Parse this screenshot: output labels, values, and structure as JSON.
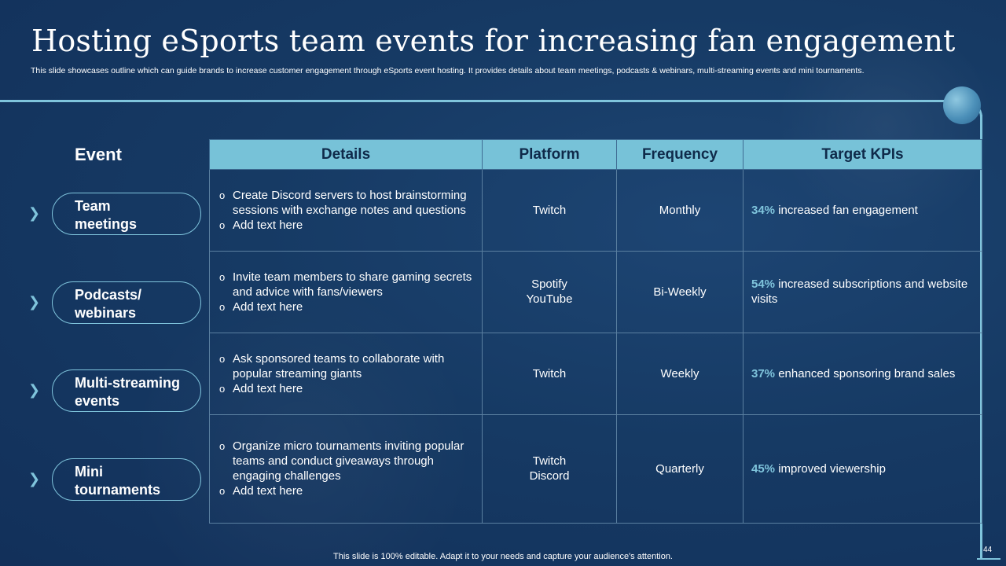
{
  "title": "Hosting eSports team events for increasing fan engagement",
  "subtitle": "This slide showcases outline which can guide brands to increase customer engagement through eSports event hosting. It provides details about team meetings, podcasts & webinars, multi-streaming events and mini tournaments.",
  "event_header": "Event",
  "events": [
    {
      "label": "Team\nmeetings"
    },
    {
      "label": "Podcasts/\nwebinars"
    },
    {
      "label": "Multi-streaming\nevents"
    },
    {
      "label": "Mini\ntournaments"
    }
  ],
  "table": {
    "headers": [
      "Details",
      "Platform",
      "Frequency",
      "Target KPIs"
    ],
    "rows": [
      {
        "details": [
          "Create Discord servers to host brainstorming sessions with exchange notes and questions",
          "Add text here"
        ],
        "platform": [
          "Twitch"
        ],
        "frequency": "Monthly",
        "kpi_pct": "34%",
        "kpi_text": " increased fan engagement"
      },
      {
        "details": [
          "Invite  team members to share gaming secrets and advice with fans/viewers",
          "Add text here"
        ],
        "platform": [
          "Spotify",
          "YouTube"
        ],
        "frequency": "Bi-Weekly",
        "kpi_pct": "54%",
        "kpi_text": " increased subscriptions and website visits"
      },
      {
        "details": [
          "Ask sponsored teams to collaborate with popular streaming giants",
          "Add text here"
        ],
        "platform": [
          "Twitch"
        ],
        "frequency": "Weekly",
        "kpi_pct": "37%",
        "kpi_text": " enhanced sponsoring brand sales"
      },
      {
        "details": [
          "Organize micro tournaments  inviting popular teams and conduct giveaways through  engaging challenges",
          "Add text here"
        ],
        "platform": [
          "Twitch",
          "Discord"
        ],
        "frequency": "Quarterly",
        "kpi_pct": "45%",
        "kpi_text": " improved viewership"
      }
    ]
  },
  "icons": {
    "chevron": "chevron-right-icon"
  },
  "colors": {
    "accent": "#7fc4dc",
    "header_bg": "#77c2d8",
    "background": "#163a64"
  },
  "footer": "This slide is 100% editable. Adapt it to your needs and capture your audience's attention.",
  "page_number": "44"
}
